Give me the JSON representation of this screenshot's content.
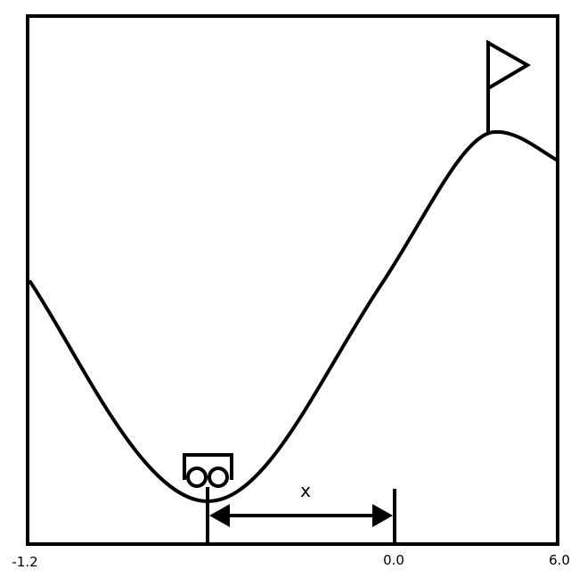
{
  "diagram": {
    "axis": {
      "min_label": "-1.2",
      "zero_label": "0.0",
      "max_label": "6.0"
    },
    "variable_label": "x"
  }
}
